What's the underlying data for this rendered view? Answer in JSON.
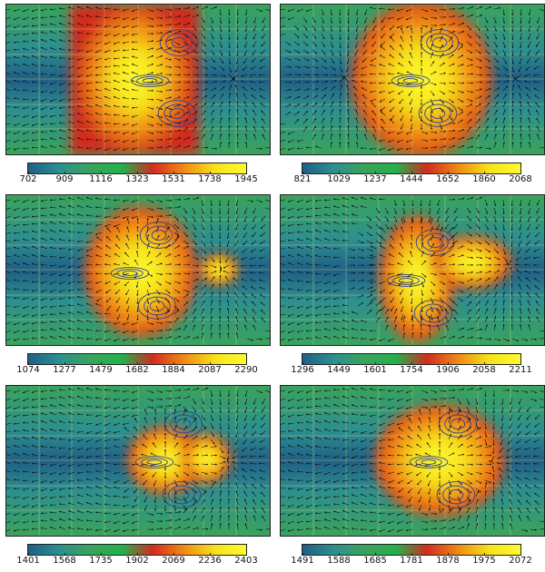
{
  "panels": [
    {
      "id": "p1",
      "ticks": [
        "702",
        "909",
        "1116",
        "1323",
        "1531",
        "1738",
        "1945"
      ],
      "hot": "band",
      "lobe": 0
    },
    {
      "id": "p2",
      "ticks": [
        "821",
        "1029",
        "1237",
        "1444",
        "1652",
        "1860",
        "2068"
      ],
      "hot": "blob",
      "lobe": 0
    },
    {
      "id": "p3",
      "ticks": [
        "1074",
        "1277",
        "1479",
        "1682",
        "1884",
        "2087",
        "2290"
      ],
      "hot": "round",
      "lobe": 1
    },
    {
      "id": "p4",
      "ticks": [
        "1296",
        "1449",
        "1601",
        "1754",
        "1906",
        "2058",
        "2211"
      ],
      "hot": "split",
      "lobe": 1
    },
    {
      "id": "p5",
      "ticks": [
        "1401",
        "1568",
        "1735",
        "1902",
        "2069",
        "2236",
        "2403"
      ],
      "hot": "small",
      "lobe": 1
    },
    {
      "id": "p6",
      "ticks": [
        "1491",
        "1588",
        "1685",
        "1781",
        "1878",
        "1975",
        "2072"
      ],
      "hot": "wide",
      "lobe": 1
    }
  ],
  "colors": {
    "colormap": [
      "#1f5f86",
      "#2d8f8f",
      "#3aa35c",
      "#22b14c",
      "#d22b1e",
      "#f08a14",
      "#f7e21a",
      "#fffa30"
    ],
    "arrow": "#111111",
    "contour": "#2b3f9a",
    "grid": "#e0e070"
  }
}
